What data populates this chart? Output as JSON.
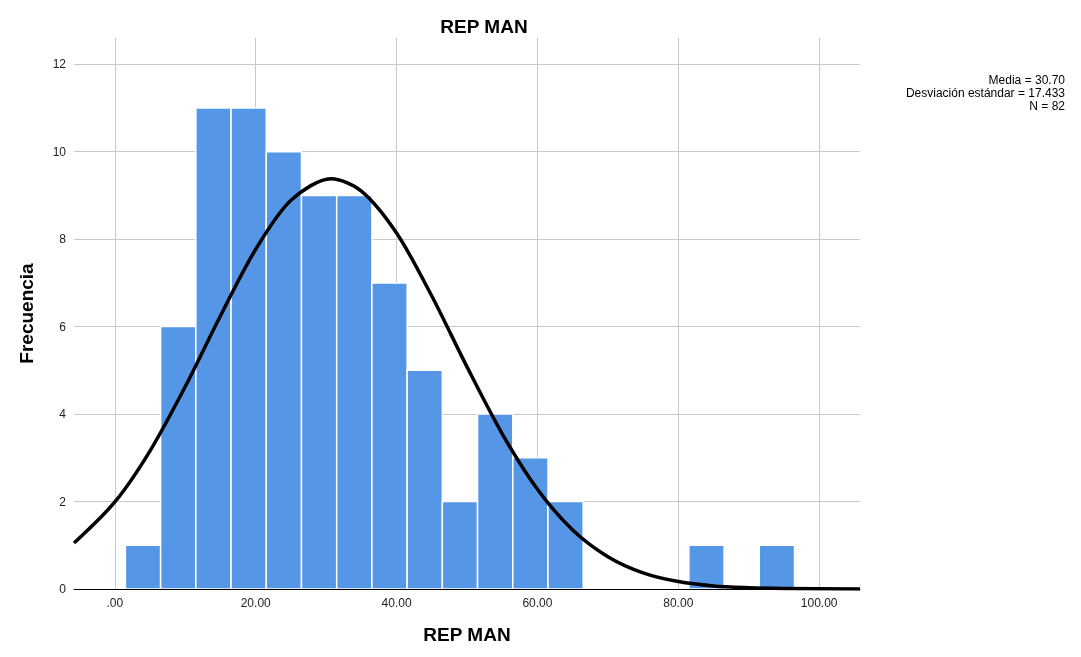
{
  "chart_data": {
    "type": "histogram",
    "title": "REP MAN",
    "xlabel": "REP MAN",
    "ylabel": "Frecuencia",
    "bins": [
      1.5,
      6.5,
      11.5,
      16.5,
      21.5,
      26.5,
      31.5,
      36.5,
      41.5,
      46.5,
      51.5,
      56.5,
      61.5,
      66.5,
      71.5,
      76.5,
      81.5,
      86.5,
      91.5,
      96.5
    ],
    "values": [
      1,
      6,
      11,
      11,
      10,
      9,
      9,
      7,
      5,
      2,
      4,
      3,
      2,
      0,
      0,
      0,
      1,
      0,
      1
    ],
    "color": "#5596e6",
    "series": [
      {
        "type": "line",
        "color": "#000000",
        "marker": "none",
        "x": [
          -5.8,
          0,
          5,
          10,
          15,
          20,
          25,
          30.7,
          35,
          40,
          45,
          50,
          55,
          60,
          65,
          70,
          75,
          80,
          85,
          90,
          95,
          105.8
        ],
        "values": [
          1.05,
          1.99,
          3.16,
          4.63,
          6.25,
          7.77,
          8.89,
          9.38,
          9.1,
          8.14,
          6.7,
          5.08,
          3.55,
          2.28,
          1.35,
          0.74,
          0.37,
          0.17,
          0.07,
          0.03,
          0.01,
          0
        ]
      }
    ],
    "xlim": [
      -5.8,
      105.8
    ],
    "ylim": [
      0,
      12.6
    ],
    "xticks": [
      {
        "value": 0,
        "label": ".00"
      },
      {
        "value": 20,
        "label": "20.00"
      },
      {
        "value": 40,
        "label": "40.00"
      },
      {
        "value": 60,
        "label": "60.00"
      },
      {
        "value": 80,
        "label": "80.00"
      },
      {
        "value": 100,
        "label": "100.00"
      }
    ],
    "yticks": [
      0,
      2,
      4,
      6,
      8,
      10,
      12
    ],
    "grid": true,
    "annotations": [
      "Media = 30.70",
      "Desviación estándar = 17.433",
      "N = 82"
    ]
  }
}
